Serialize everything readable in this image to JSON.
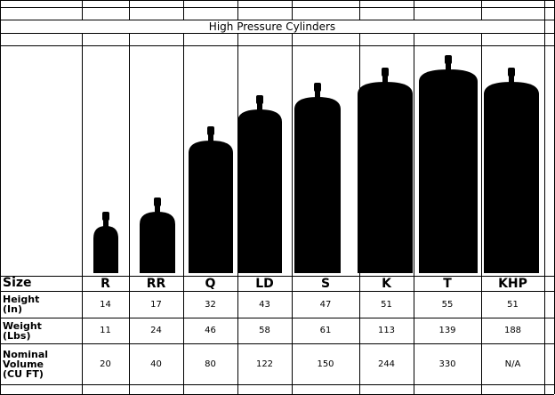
{
  "header": {
    "title": "High Pressure Cylinders"
  },
  "table": {
    "header": [
      "Size",
      "R",
      "RR",
      "Q",
      "LD",
      "S",
      "K",
      "T",
      "KHP"
    ],
    "rows": [
      [
        "Height (In)",
        14,
        17,
        32,
        43,
        47,
        51,
        55,
        51
      ],
      [
        "Weight (Lbs)",
        11,
        24,
        46,
        58,
        61,
        113,
        139,
        188
      ],
      [
        "Nominal Volume (CU FT)",
        20,
        40,
        80,
        122,
        150,
        244,
        330,
        "N/A"
      ]
    ]
  }
}
